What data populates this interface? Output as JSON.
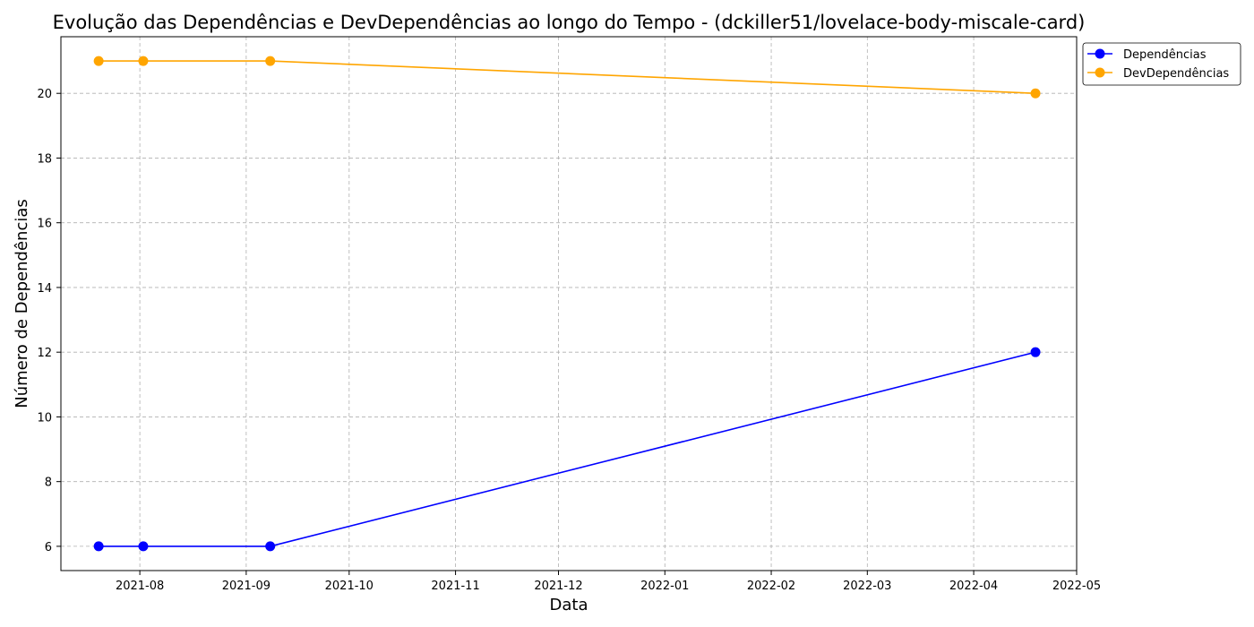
{
  "chart_data": {
    "type": "line",
    "title": "Evolução das Dependências e DevDependências ao longo do Tempo - (dckiller51/lovelace-body-miscale-card)",
    "xlabel": "Data",
    "ylabel": "Número de Dependências",
    "x_ticks": [
      "2021-08",
      "2021-09",
      "2021-10",
      "2021-11",
      "2021-12",
      "2022-01",
      "2022-02",
      "2022-03",
      "2022-04",
      "2022-05"
    ],
    "y_ticks": [
      6,
      8,
      10,
      12,
      14,
      16,
      18,
      20
    ],
    "xlim": [
      "2021-07-09",
      "2022-05-01"
    ],
    "ylim": [
      5.25,
      21.75
    ],
    "grid": true,
    "legend_position": "outside-top-right",
    "x": [
      "2021-07-20",
      "2021-08-02",
      "2021-09-08",
      "2022-04-19"
    ],
    "series": [
      {
        "name": "Dependências",
        "color": "#0000ff",
        "marker": "circle",
        "values": [
          6,
          6,
          6,
          12
        ]
      },
      {
        "name": "DevDependências",
        "color": "#ffa500",
        "marker": "circle",
        "values": [
          21,
          21,
          21,
          20
        ]
      }
    ]
  }
}
